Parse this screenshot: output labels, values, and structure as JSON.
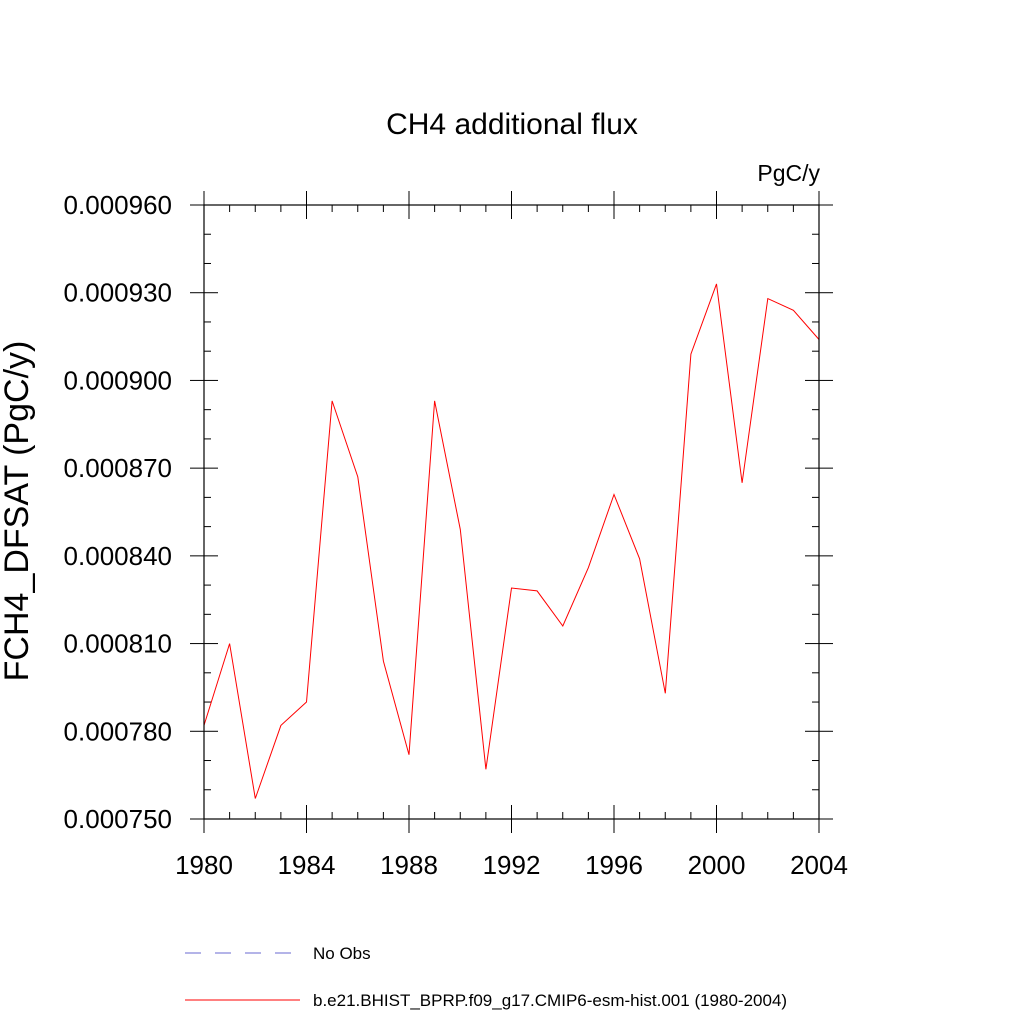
{
  "chart_data": {
    "type": "line",
    "title": "CH4 additional flux",
    "units_label": "PgC/y",
    "ylabel": "FCH4_DFSAT  (PgC/y)",
    "xlabel": "",
    "xlim": [
      1980,
      2004
    ],
    "ylim": [
      0.00075,
      0.00096
    ],
    "x_ticks": [
      1980,
      1984,
      1988,
      1992,
      1996,
      2000,
      2004
    ],
    "x_tick_labels": [
      "1980",
      "1984",
      "1988",
      "1992",
      "1996",
      "2000",
      "2004"
    ],
    "y_ticks": [
      0.00075,
      0.00078,
      0.00081,
      0.00084,
      0.00087,
      0.0009,
      0.00093,
      0.00096
    ],
    "y_tick_labels": [
      "0.000750",
      "0.000780",
      "0.000810",
      "0.000840",
      "0.000870",
      "0.000900",
      "0.000930",
      "0.000960"
    ],
    "grid": false,
    "legend_position": "bottom",
    "series": [
      {
        "name": "b.e21.BHIST_BPRP.f09_g17.CMIP6-esm-hist.001 (1980-2004)",
        "color": "#ff0000",
        "style": "solid",
        "x": [
          1980,
          1981,
          1982,
          1983,
          1984,
          1985,
          1986,
          1987,
          1988,
          1989,
          1990,
          1991,
          1992,
          1993,
          1994,
          1995,
          1996,
          1997,
          1998,
          1999,
          2000,
          2001,
          2002,
          2003,
          2004
        ],
        "values": [
          0.000782,
          0.00081,
          0.000757,
          0.000782,
          0.00079,
          0.000893,
          0.000867,
          0.000804,
          0.000772,
          0.000893,
          0.000849,
          0.000767,
          0.000829,
          0.000828,
          0.000816,
          0.000836,
          0.000861,
          0.000839,
          0.000793,
          0.000909,
          0.000933,
          0.000865,
          0.000928,
          0.000924,
          0.000914
        ]
      }
    ],
    "legend": [
      {
        "label": "No Obs",
        "color": "#6a6ad0",
        "style": "dashed"
      },
      {
        "label": "b.e21.BHIST_BPRP.f09_g17.CMIP6-esm-hist.001 (1980-2004)",
        "color": "#ff0000",
        "style": "solid"
      }
    ]
  }
}
